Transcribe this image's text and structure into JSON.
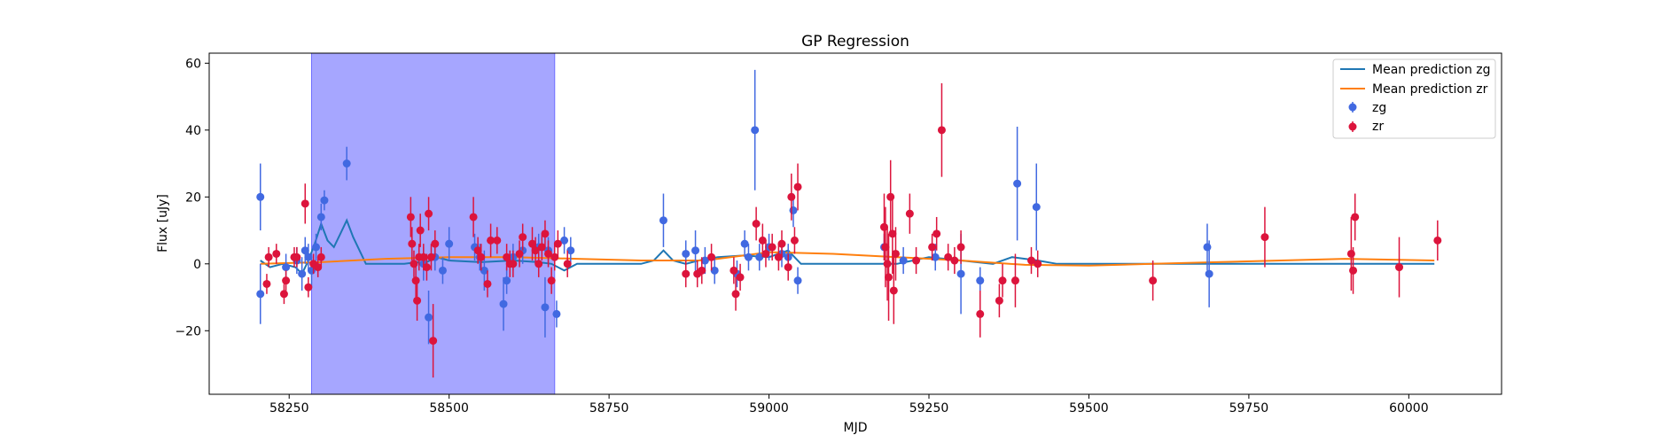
{
  "chart_data": {
    "type": "scatter",
    "title": "GP Regression",
    "xlabel": "MJD",
    "ylabel": "Flux [uJy]",
    "xlim": [
      58125,
      60145
    ],
    "ylim": [
      -39,
      63
    ],
    "xticks": [
      58250,
      58500,
      58750,
      59000,
      59250,
      59500,
      59750,
      60000
    ],
    "yticks": [
      -20,
      0,
      20,
      40,
      60
    ],
    "grid": false,
    "legend_position": "top-right",
    "colors": {
      "zg": "#4169e1",
      "zr": "#dc143c",
      "mean_zg": "#1f77b4",
      "mean_zr": "#ff7f0e",
      "span": "#a6a6ff"
    },
    "shaded_span": {
      "x_start": 58285,
      "x_end": 58665
    },
    "legend": [
      "Mean prediction zg",
      "Mean prediction zr",
      "zg",
      "zr"
    ],
    "mean_prediction_zg": {
      "name": "Mean prediction zg",
      "x": [
        58205,
        58220,
        58240,
        58260,
        58270,
        58280,
        58290,
        58300,
        58310,
        58320,
        58330,
        58340,
        58350,
        58370,
        58400,
        58430,
        58450,
        58460,
        58470,
        58480,
        58500,
        58550,
        58600,
        58640,
        58660,
        58680,
        58700,
        58800,
        58820,
        58835,
        58850,
        58870,
        58890,
        58920,
        58960,
        59000,
        59030,
        59050,
        59100,
        59200,
        59250,
        59300,
        59350,
        59380,
        59400,
        59420,
        59450,
        59600,
        59700,
        59900,
        60040
      ],
      "y": [
        1,
        -1,
        0,
        -1,
        -3,
        1,
        6,
        12,
        7,
        5,
        9,
        13,
        8,
        0,
        0,
        0,
        0.5,
        0,
        1,
        2,
        1,
        0.5,
        1,
        0.5,
        0,
        -2,
        0,
        0,
        1,
        4,
        1,
        0,
        1,
        2,
        2.5,
        2,
        4,
        0,
        0,
        0,
        2,
        1,
        0,
        2,
        1.5,
        1,
        0,
        0,
        0,
        0,
        0
      ]
    },
    "mean_prediction_zr": {
      "name": "Mean prediction zr",
      "x": [
        58205,
        58300,
        58400,
        58500,
        58600,
        58700,
        58800,
        58900,
        59000,
        59100,
        59200,
        59300,
        59400,
        59500,
        59600,
        59700,
        59800,
        59900,
        60040
      ],
      "y": [
        0,
        0.5,
        1.5,
        2,
        2,
        1.5,
        1,
        1,
        3.5,
        3,
        2,
        1,
        -0.3,
        -0.5,
        0,
        0.5,
        1,
        1.5,
        1
      ]
    },
    "series": [
      {
        "name": "zg",
        "points": [
          {
            "x": 58205,
            "y": 20,
            "err": 10
          },
          {
            "x": 58205,
            "y": -9,
            "err": 9
          },
          {
            "x": 58245,
            "y": -1,
            "err": 4
          },
          {
            "x": 58262,
            "y": 1,
            "err": 4
          },
          {
            "x": 58270,
            "y": -3,
            "err": 5
          },
          {
            "x": 58275,
            "y": 4,
            "err": 4
          },
          {
            "x": 58280,
            "y": 2,
            "err": 4
          },
          {
            "x": 58285,
            "y": -2,
            "err": 5
          },
          {
            "x": 58292,
            "y": 5,
            "err": 4
          },
          {
            "x": 58300,
            "y": 14,
            "err": 4
          },
          {
            "x": 58305,
            "y": 19,
            "err": 3
          },
          {
            "x": 58340,
            "y": 30,
            "err": 5
          },
          {
            "x": 58460,
            "y": 0,
            "err": 5
          },
          {
            "x": 58468,
            "y": -16,
            "err": 8
          },
          {
            "x": 58478,
            "y": 2,
            "err": 4
          },
          {
            "x": 58490,
            "y": -2,
            "err": 4
          },
          {
            "x": 58500,
            "y": 6,
            "err": 5
          },
          {
            "x": 58540,
            "y": 5,
            "err": 4
          },
          {
            "x": 58548,
            "y": 2,
            "err": 4
          },
          {
            "x": 58555,
            "y": -2,
            "err": 6
          },
          {
            "x": 58585,
            "y": -12,
            "err": 8
          },
          {
            "x": 58590,
            "y": -5,
            "err": 4
          },
          {
            "x": 58600,
            "y": 2,
            "err": 4
          },
          {
            "x": 58615,
            "y": 4,
            "err": 4
          },
          {
            "x": 58640,
            "y": 5,
            "err": 4
          },
          {
            "x": 58650,
            "y": -13,
            "err": 9
          },
          {
            "x": 58655,
            "y": 4,
            "err": 4
          },
          {
            "x": 58668,
            "y": -15,
            "err": 4
          },
          {
            "x": 58680,
            "y": 7,
            "err": 4
          },
          {
            "x": 58690,
            "y": 4,
            "err": 4
          },
          {
            "x": 58835,
            "y": 13,
            "err": 8
          },
          {
            "x": 58870,
            "y": 3,
            "err": 4
          },
          {
            "x": 58885,
            "y": 4,
            "err": 6
          },
          {
            "x": 58900,
            "y": 1,
            "err": 4
          },
          {
            "x": 58915,
            "y": -2,
            "err": 4
          },
          {
            "x": 58950,
            "y": -3,
            "err": 4
          },
          {
            "x": 58962,
            "y": 6,
            "err": 4
          },
          {
            "x": 58968,
            "y": 2,
            "err": 4
          },
          {
            "x": 58978,
            "y": 40,
            "err": 18
          },
          {
            "x": 58985,
            "y": 2,
            "err": 4
          },
          {
            "x": 59000,
            "y": 5,
            "err": 4
          },
          {
            "x": 59020,
            "y": 3,
            "err": 4
          },
          {
            "x": 59030,
            "y": 2,
            "err": 4
          },
          {
            "x": 59038,
            "y": 16,
            "err": 5
          },
          {
            "x": 59045,
            "y": -5,
            "err": 4
          },
          {
            "x": 59180,
            "y": 5,
            "err": 4
          },
          {
            "x": 59210,
            "y": 1,
            "err": 4
          },
          {
            "x": 59260,
            "y": 2,
            "err": 4
          },
          {
            "x": 59300,
            "y": -3,
            "err": 12
          },
          {
            "x": 59330,
            "y": -5,
            "err": 4
          },
          {
            "x": 59388,
            "y": 24,
            "err": 17
          },
          {
            "x": 59418,
            "y": 17,
            "err": 13
          },
          {
            "x": 59685,
            "y": 5,
            "err": 7
          },
          {
            "x": 59688,
            "y": -3,
            "err": 10
          }
        ]
      },
      {
        "name": "zr",
        "points": [
          {
            "x": 58215,
            "y": -6,
            "err": 3
          },
          {
            "x": 58218,
            "y": 2,
            "err": 3
          },
          {
            "x": 58230,
            "y": 3,
            "err": 3
          },
          {
            "x": 58242,
            "y": -9,
            "err": 3
          },
          {
            "x": 58245,
            "y": -5,
            "err": 3
          },
          {
            "x": 58258,
            "y": 2,
            "err": 3
          },
          {
            "x": 58262,
            "y": 2,
            "err": 3
          },
          {
            "x": 58275,
            "y": 18,
            "err": 6
          },
          {
            "x": 58280,
            "y": -7,
            "err": 3
          },
          {
            "x": 58288,
            "y": 0,
            "err": 3
          },
          {
            "x": 58295,
            "y": -1,
            "err": 3
          },
          {
            "x": 58300,
            "y": 2,
            "err": 3
          },
          {
            "x": 58440,
            "y": 14,
            "err": 6
          },
          {
            "x": 58442,
            "y": 6,
            "err": 5
          },
          {
            "x": 58445,
            "y": 0,
            "err": 4
          },
          {
            "x": 58448,
            "y": -5,
            "err": 5
          },
          {
            "x": 58450,
            "y": -11,
            "err": 6
          },
          {
            "x": 58453,
            "y": 2,
            "err": 4
          },
          {
            "x": 58455,
            "y": 10,
            "err": 5
          },
          {
            "x": 58460,
            "y": 2,
            "err": 4
          },
          {
            "x": 58465,
            "y": -1,
            "err": 4
          },
          {
            "x": 58468,
            "y": 15,
            "err": 5
          },
          {
            "x": 58472,
            "y": 2,
            "err": 4
          },
          {
            "x": 58475,
            "y": -23,
            "err": 11
          },
          {
            "x": 58478,
            "y": 6,
            "err": 4
          },
          {
            "x": 58538,
            "y": 14,
            "err": 6
          },
          {
            "x": 58545,
            "y": 4,
            "err": 4
          },
          {
            "x": 58550,
            "y": 2,
            "err": 4
          },
          {
            "x": 58560,
            "y": -6,
            "err": 4
          },
          {
            "x": 58565,
            "y": 7,
            "err": 5
          },
          {
            "x": 58575,
            "y": 7,
            "err": 4
          },
          {
            "x": 58590,
            "y": 2,
            "err": 4
          },
          {
            "x": 58595,
            "y": 0,
            "err": 4
          },
          {
            "x": 58600,
            "y": 0,
            "err": 4
          },
          {
            "x": 58610,
            "y": 3,
            "err": 4
          },
          {
            "x": 58615,
            "y": 8,
            "err": 4
          },
          {
            "x": 58630,
            "y": 6,
            "err": 5
          },
          {
            "x": 58635,
            "y": 4,
            "err": 4
          },
          {
            "x": 58640,
            "y": 0,
            "err": 4
          },
          {
            "x": 58645,
            "y": 5,
            "err": 4
          },
          {
            "x": 58650,
            "y": 9,
            "err": 4
          },
          {
            "x": 58655,
            "y": 3,
            "err": 4
          },
          {
            "x": 58660,
            "y": -5,
            "err": 4
          },
          {
            "x": 58665,
            "y": 2,
            "err": 4
          },
          {
            "x": 58670,
            "y": 6,
            "err": 4
          },
          {
            "x": 58685,
            "y": 0,
            "err": 4
          },
          {
            "x": 58870,
            "y": -3,
            "err": 4
          },
          {
            "x": 58888,
            "y": -3,
            "err": 4
          },
          {
            "x": 58895,
            "y": -2,
            "err": 4
          },
          {
            "x": 58910,
            "y": 2,
            "err": 4
          },
          {
            "x": 58945,
            "y": -2,
            "err": 4
          },
          {
            "x": 58948,
            "y": -9,
            "err": 5
          },
          {
            "x": 58955,
            "y": -4,
            "err": 4
          },
          {
            "x": 58980,
            "y": 12,
            "err": 5
          },
          {
            "x": 58990,
            "y": 7,
            "err": 5
          },
          {
            "x": 58995,
            "y": 3,
            "err": 4
          },
          {
            "x": 59005,
            "y": 5,
            "err": 4
          },
          {
            "x": 59015,
            "y": 2,
            "err": 4
          },
          {
            "x": 59020,
            "y": 6,
            "err": 4
          },
          {
            "x": 59030,
            "y": -1,
            "err": 4
          },
          {
            "x": 59035,
            "y": 20,
            "err": 7
          },
          {
            "x": 59040,
            "y": 7,
            "err": 4
          },
          {
            "x": 59045,
            "y": 23,
            "err": 7
          },
          {
            "x": 59180,
            "y": 11,
            "err": 10
          },
          {
            "x": 59182,
            "y": 5,
            "err": 12
          },
          {
            "x": 59185,
            "y": 0,
            "err": 11
          },
          {
            "x": 59187,
            "y": -4,
            "err": 13
          },
          {
            "x": 59190,
            "y": 20,
            "err": 11
          },
          {
            "x": 59193,
            "y": 9,
            "err": 12
          },
          {
            "x": 59195,
            "y": -8,
            "err": 10
          },
          {
            "x": 59198,
            "y": 3,
            "err": 8
          },
          {
            "x": 59220,
            "y": 15,
            "err": 6
          },
          {
            "x": 59230,
            "y": 1,
            "err": 4
          },
          {
            "x": 59255,
            "y": 5,
            "err": 4
          },
          {
            "x": 59262,
            "y": 9,
            "err": 5
          },
          {
            "x": 59270,
            "y": 40,
            "err": 14
          },
          {
            "x": 59280,
            "y": 2,
            "err": 4
          },
          {
            "x": 59290,
            "y": 1,
            "err": 4
          },
          {
            "x": 59300,
            "y": 5,
            "err": 5
          },
          {
            "x": 59330,
            "y": -15,
            "err": 7
          },
          {
            "x": 59360,
            "y": -11,
            "err": 5
          },
          {
            "x": 59365,
            "y": -5,
            "err": 5
          },
          {
            "x": 59385,
            "y": -5,
            "err": 8
          },
          {
            "x": 59410,
            "y": 1,
            "err": 4
          },
          {
            "x": 59420,
            "y": 0,
            "err": 4
          },
          {
            "x": 59600,
            "y": -5,
            "err": 6
          },
          {
            "x": 59775,
            "y": 8,
            "err": 9
          },
          {
            "x": 59910,
            "y": 3,
            "err": 11
          },
          {
            "x": 59913,
            "y": -2,
            "err": 7
          },
          {
            "x": 59916,
            "y": 14,
            "err": 7
          },
          {
            "x": 59985,
            "y": -1,
            "err": 9
          },
          {
            "x": 60045,
            "y": 7,
            "err": 6
          }
        ]
      }
    ]
  }
}
